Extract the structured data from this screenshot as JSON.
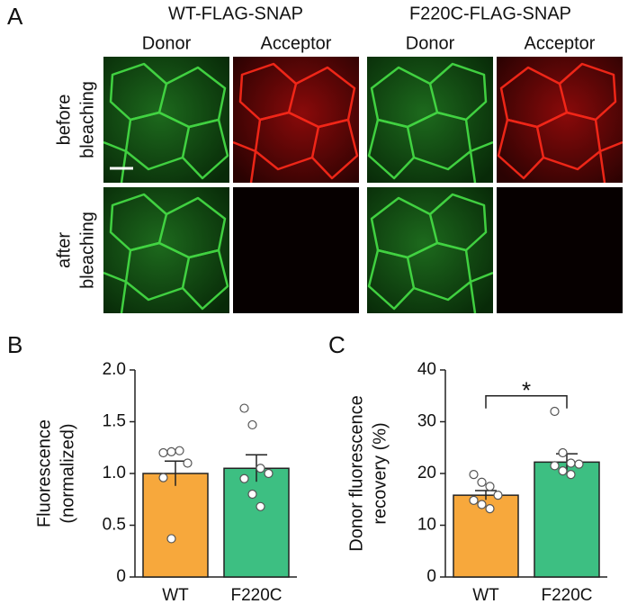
{
  "panel_a": {
    "label": "A",
    "groups": [
      "WT-FLAG-SNAP",
      "F220C-FLAG-SNAP"
    ],
    "channels": [
      "Donor",
      "Acceptor",
      "Donor",
      "Acceptor"
    ],
    "rows": [
      [
        "before",
        "bleaching"
      ],
      [
        "after",
        "bleaching"
      ]
    ]
  },
  "chart_data": [
    {
      "type": "bar",
      "panel": "B",
      "ylabel": [
        "Fluorescence",
        "(normalized)"
      ],
      "categories": [
        "WT",
        "F220C"
      ],
      "values": [
        1.0,
        1.05
      ],
      "errors": [
        0.12,
        0.13
      ],
      "colors": [
        "#f7a83c",
        "#3dbf82"
      ],
      "points": [
        [
          1.2,
          1.21,
          1.22,
          1.1,
          0.96,
          0.37
        ],
        [
          1.63,
          1.47,
          1.05,
          1.0,
          0.95,
          0.8,
          0.68
        ]
      ],
      "ylim": [
        0,
        2
      ],
      "yticks": [
        0,
        0.5,
        {
          "value": 1,
          "label": "1.0"
        },
        1.5,
        {
          "value": 2,
          "label": "2.0"
        }
      ]
    },
    {
      "type": "bar",
      "panel": "C",
      "ylabel": [
        "Donor fluorescence",
        "recovery (%)"
      ],
      "categories": [
        "WT",
        "F220C"
      ],
      "values": [
        15.8,
        22.2
      ],
      "errors": [
        0.9,
        1.6
      ],
      "colors": [
        "#f7a83c",
        "#3dbf82"
      ],
      "points": [
        [
          19.8,
          18.3,
          17.5,
          15.8,
          14.8,
          14.0,
          13.2
        ],
        [
          32,
          24,
          22,
          21.8,
          21.5,
          20.5,
          19.8
        ]
      ],
      "ylim": [
        0,
        40
      ],
      "yticks": [
        0,
        10,
        20,
        30,
        40
      ],
      "significance": {
        "label": "*",
        "y": 35
      }
    }
  ]
}
